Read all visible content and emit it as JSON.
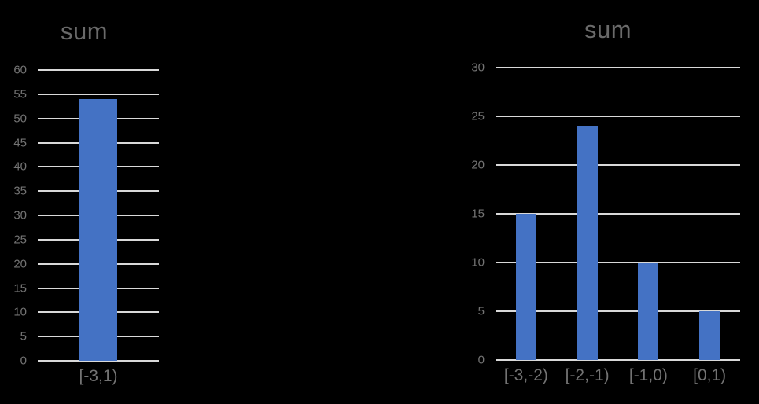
{
  "background_color": "#000000",
  "chart_data": [
    {
      "type": "bar",
      "title": "sum",
      "categories": [
        "[-3,1)"
      ],
      "values": [
        54
      ],
      "xlabel": "",
      "ylabel": "",
      "ylim": [
        0,
        60
      ],
      "ytick_step": 5,
      "ytick_labels": [
        "0",
        "5",
        "10",
        "15",
        "20",
        "25",
        "30",
        "35",
        "40",
        "45",
        "50",
        "55",
        "60"
      ],
      "grid": "on",
      "legend": "none",
      "bar_color": "#4472c4",
      "gridline_color": "#d9d9d9",
      "tick_label_color": "#737373",
      "title_color": "#6a6a6a"
    },
    {
      "type": "bar",
      "title": "sum",
      "categories": [
        "[-3,-2)",
        "[-2,-1)",
        "[-1,0)",
        "[0,1)"
      ],
      "values": [
        15,
        24,
        10,
        5
      ],
      "xlabel": "",
      "ylabel": "",
      "ylim": [
        0,
        30
      ],
      "ytick_step": 5,
      "ytick_labels": [
        "0",
        "5",
        "10",
        "15",
        "20",
        "25",
        "30"
      ],
      "grid": "on",
      "legend": "none",
      "bar_color": "#4472c4",
      "gridline_color": "#d9d9d9",
      "tick_label_color": "#737373",
      "title_color": "#6a6a6a"
    }
  ]
}
